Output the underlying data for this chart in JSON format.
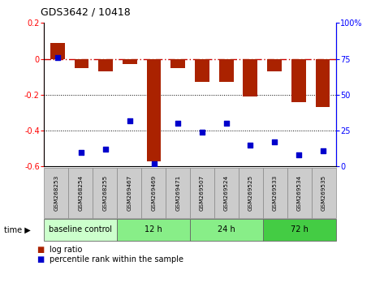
{
  "title": "GDS3642 / 10418",
  "samples": [
    "GSM268253",
    "GSM268254",
    "GSM268255",
    "GSM269467",
    "GSM269469",
    "GSM269471",
    "GSM269507",
    "GSM269524",
    "GSM269525",
    "GSM269533",
    "GSM269534",
    "GSM269535"
  ],
  "log_ratio": [
    0.09,
    -0.05,
    -0.07,
    -0.03,
    -0.57,
    -0.05,
    -0.13,
    -0.13,
    -0.21,
    -0.07,
    -0.24,
    -0.27
  ],
  "percentile_rank": [
    76,
    10,
    12,
    32,
    2,
    30,
    24,
    30,
    15,
    17,
    8,
    11
  ],
  "groups": [
    {
      "label": "baseline control",
      "start": 0,
      "end": 3,
      "color": "#ccffcc"
    },
    {
      "label": "12 h",
      "start": 3,
      "end": 6,
      "color": "#88ee88"
    },
    {
      "label": "24 h",
      "start": 6,
      "end": 9,
      "color": "#88ee88"
    },
    {
      "label": "72 h",
      "start": 9,
      "end": 12,
      "color": "#44cc44"
    }
  ],
  "bar_color": "#aa2200",
  "dot_color": "#0000cc",
  "ylim_left": [
    -0.6,
    0.2
  ],
  "ylim_right": [
    0,
    100
  ],
  "right_ticks": [
    0,
    25,
    50,
    75,
    100
  ],
  "right_labels": [
    "0",
    "25",
    "50",
    "75",
    "100%"
  ],
  "left_ticks": [
    -0.6,
    -0.4,
    -0.2,
    0.0,
    0.2
  ],
  "hline_color": "#cc0000",
  "dotline_color": "black"
}
